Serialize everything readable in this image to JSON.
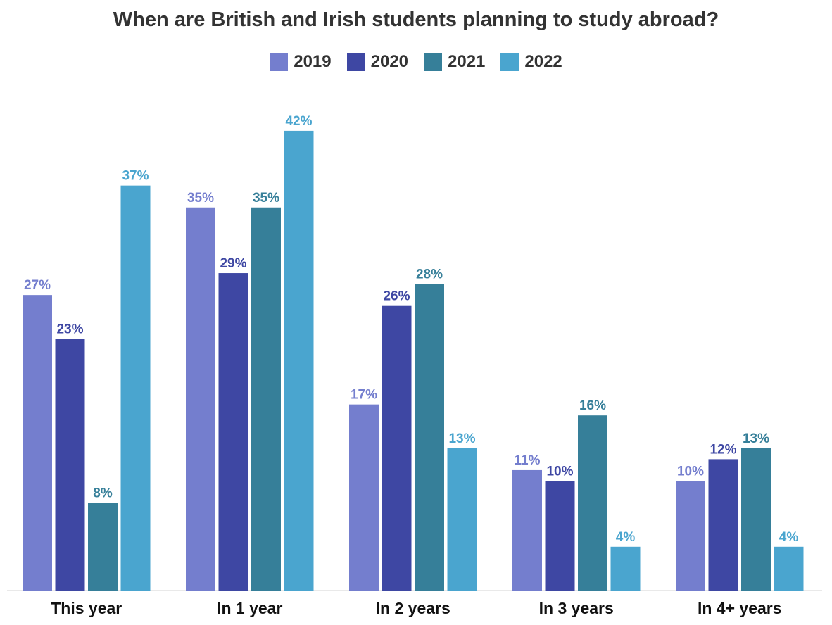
{
  "chart_data": {
    "type": "bar",
    "title": "When are British and Irish students planning to study abroad?",
    "categories": [
      "This year",
      "In 1 year",
      "In 2 years",
      "In 3 years",
      "In 4+ years"
    ],
    "series": [
      {
        "name": "2019",
        "color": "#747ECE",
        "values": [
          27,
          35,
          17,
          11,
          10
        ]
      },
      {
        "name": "2020",
        "color": "#3E47A3",
        "values": [
          23,
          29,
          26,
          10,
          12
        ]
      },
      {
        "name": "2021",
        "color": "#367F99",
        "values": [
          8,
          35,
          28,
          16,
          13
        ]
      },
      {
        "name": "2022",
        "color": "#4AA5CF",
        "values": [
          37,
          42,
          13,
          4,
          4
        ]
      }
    ],
    "value_suffix": "%",
    "ylim": [
      0,
      45
    ],
    "legend_position": "top-center",
    "grid": false,
    "xlabel": "",
    "ylabel": ""
  }
}
